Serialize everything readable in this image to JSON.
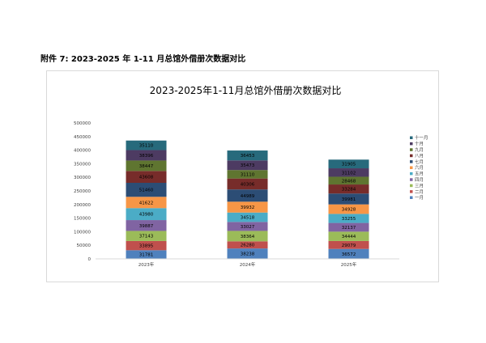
{
  "document": {
    "heading": "附件 7: 2023-2025 年 1-11 月总馆外借册次数据对比"
  },
  "chart_data": {
    "type": "bar",
    "stacked": true,
    "title": "2023-2025年1-11月总馆外借册次数据对比",
    "categories": [
      "2023年",
      "2024年",
      "2025年"
    ],
    "ylim": [
      0,
      500000
    ],
    "yticks": [
      "0",
      "50000",
      "100000",
      "150000",
      "200000",
      "250000",
      "300000",
      "350000",
      "400000",
      "450000",
      "500000"
    ],
    "grid": false,
    "legend_position": "right",
    "series": [
      {
        "name": "一月",
        "color": "#4f81bd",
        "values": [
          31781,
          38238,
          36572
        ]
      },
      {
        "name": "二月",
        "color": "#c0504d",
        "values": [
          33895,
          26280,
          29079
        ]
      },
      {
        "name": "三月",
        "color": "#9bbb59",
        "values": [
          37143,
          38364,
          34444
        ]
      },
      {
        "name": "四月",
        "color": "#8064a2",
        "values": [
          39887,
          33027,
          32137
        ]
      },
      {
        "name": "五月",
        "color": "#4bacc6",
        "values": [
          43980,
          34518,
          33255
        ]
      },
      {
        "name": "六月",
        "color": "#f79646",
        "values": [
          41622,
          39932,
          34928
        ]
      },
      {
        "name": "七月",
        "color": "#2c4d75",
        "values": [
          51460,
          44989,
          39981
        ]
      },
      {
        "name": "八月",
        "color": "#772c2a",
        "values": [
          43608,
          40306,
          33284
        ]
      },
      {
        "name": "九月",
        "color": "#5f7530",
        "values": [
          38447,
          31110,
          28468
        ]
      },
      {
        "name": "十月",
        "color": "#4d3b62",
        "values": [
          38396,
          35473,
          31102
        ]
      },
      {
        "name": "十一月",
        "color": "#276a7c",
        "values": [
          35110,
          36453,
          31905
        ]
      }
    ]
  }
}
